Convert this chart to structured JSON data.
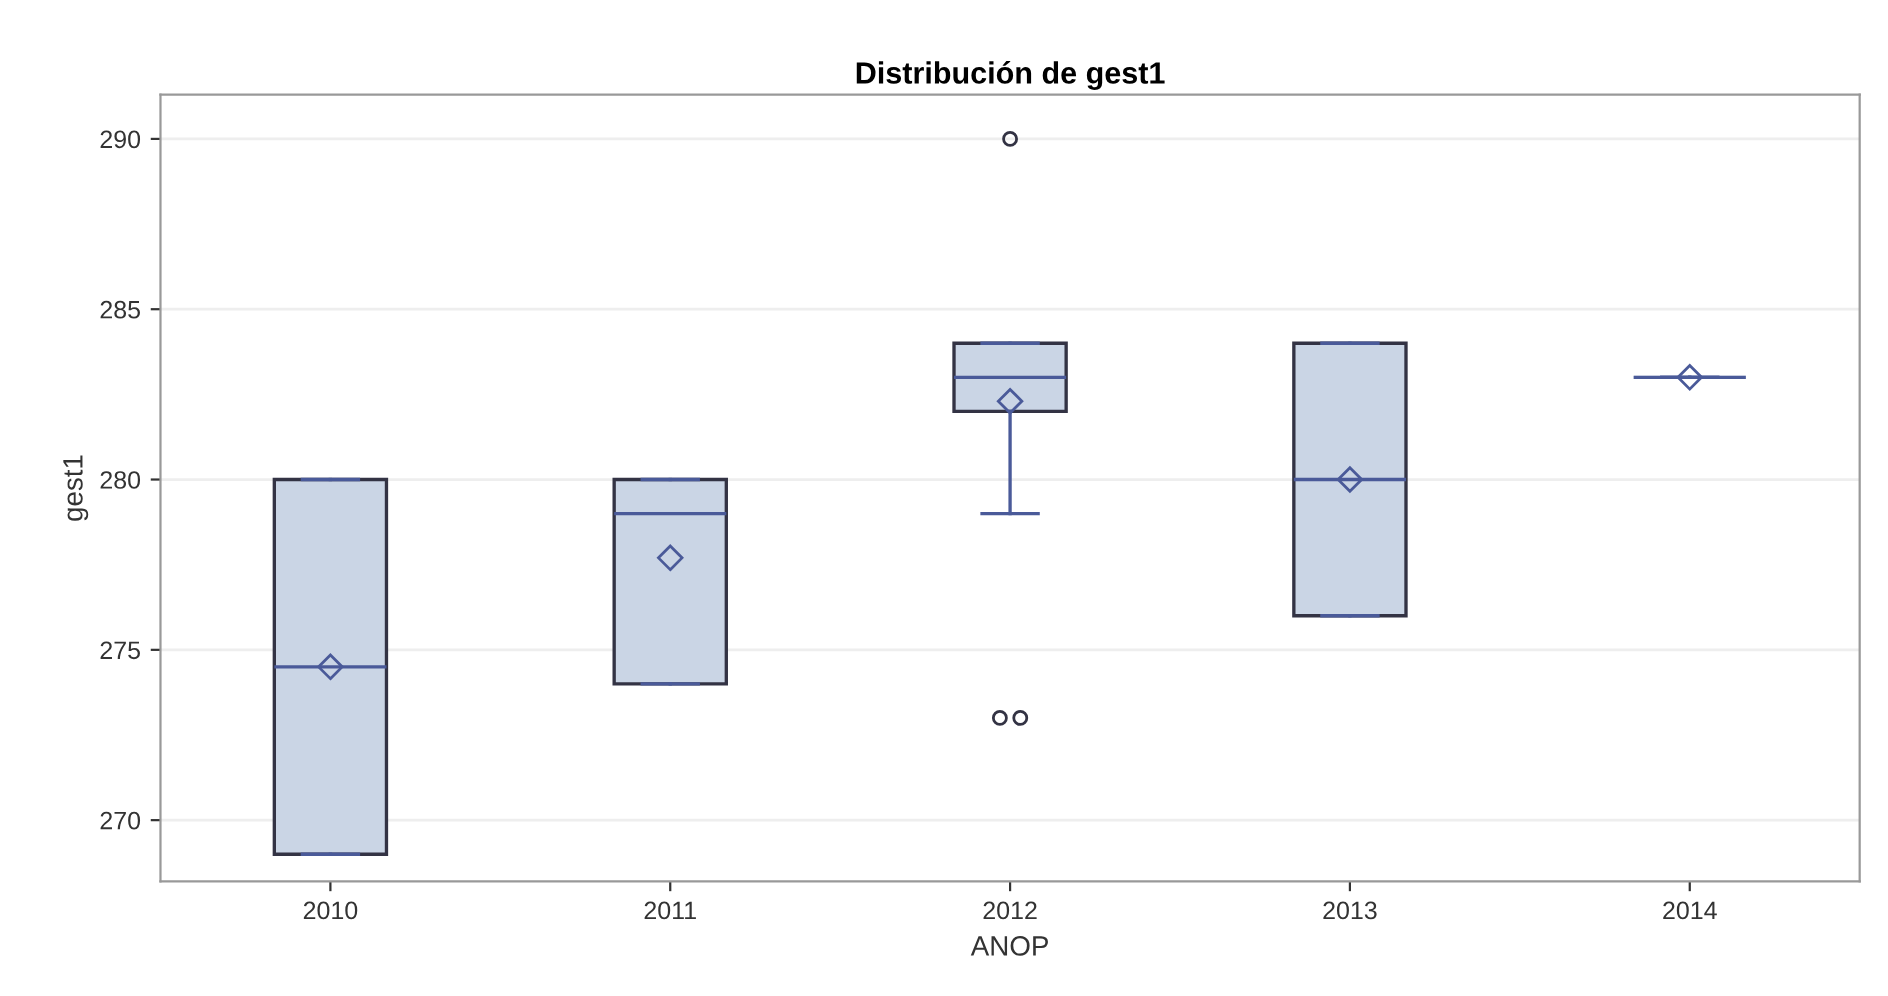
{
  "chart_data": {
    "type": "box",
    "title": "Distribución de gest1",
    "xlabel": "ANOP",
    "ylabel": "gest1",
    "categories": [
      "2010",
      "2011",
      "2012",
      "2013",
      "2014"
    ],
    "boxes": [
      {
        "low": 269,
        "q1": 269,
        "median": 274.5,
        "q3": 280,
        "high": 280,
        "mean": 274.5
      },
      {
        "low": 274,
        "q1": 274,
        "median": 279,
        "q3": 280,
        "high": 280,
        "mean": 277.7
      },
      {
        "low": 279,
        "q1": 282,
        "median": 283,
        "q3": 284,
        "high": 284,
        "mean": 282.3,
        "outliers": [
          290,
          273,
          273
        ]
      },
      {
        "low": 276,
        "q1": 276,
        "median": 280,
        "q3": 284,
        "high": 284,
        "mean": 280
      },
      {
        "low": 283,
        "q1": 283,
        "median": 283,
        "q3": 283,
        "high": 283,
        "mean": 283
      }
    ],
    "color": "#cad5e5",
    "ylim": [
      268.2,
      291.3
    ],
    "yticks": [
      270,
      275,
      280,
      285,
      290
    ],
    "grid": "y"
  }
}
